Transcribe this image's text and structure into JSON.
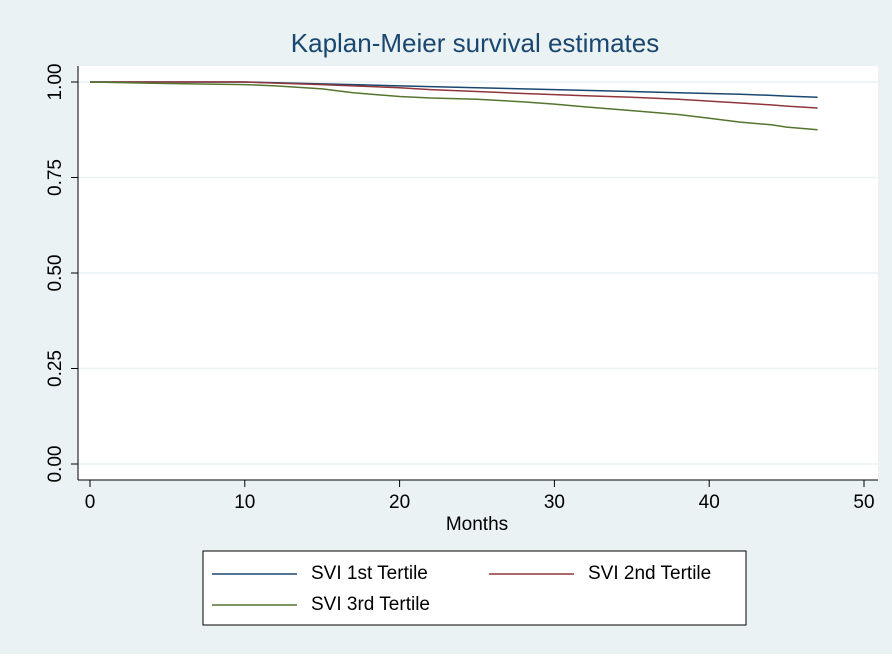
{
  "chart_data": {
    "type": "line",
    "title": "Kaplan-Meier survival estimates",
    "x_label": "Months",
    "x": [
      0,
      5,
      10,
      12,
      15,
      17,
      20,
      22,
      25,
      28,
      30,
      32,
      35,
      38,
      40,
      42,
      44,
      45,
      47
    ],
    "series": [
      {
        "name": "SVI 1st Tertile",
        "color": "#1a476f",
        "values": [
          1,
          1,
          1,
          0.998,
          0.995,
          0.993,
          0.99,
          0.988,
          0.985,
          0.982,
          0.98,
          0.978,
          0.975,
          0.972,
          0.97,
          0.968,
          0.965,
          0.963,
          0.96
        ]
      },
      {
        "name": "SVI 2nd Tertile",
        "color": "#90353b",
        "values": [
          1,
          1,
          1,
          0.997,
          0.993,
          0.99,
          0.985,
          0.98,
          0.975,
          0.97,
          0.967,
          0.964,
          0.96,
          0.955,
          0.95,
          0.945,
          0.94,
          0.937,
          0.932
        ]
      },
      {
        "name": "SVI 3rd Tertile",
        "color": "#55752f",
        "values": [
          1,
          0.996,
          0.993,
          0.99,
          0.982,
          0.972,
          0.962,
          0.958,
          0.955,
          0.948,
          0.942,
          0.935,
          0.925,
          0.915,
          0.905,
          0.895,
          0.888,
          0.882,
          0.875
        ]
      }
    ],
    "xlim": [
      0,
      50
    ],
    "xticks": [
      0,
      10,
      20,
      30,
      40,
      50
    ],
    "ylim": [
      0,
      1
    ],
    "yticks": [
      {
        "value": 0,
        "label": "0.00"
      },
      {
        "value": 0.25,
        "label": "0.25"
      },
      {
        "value": 0.5,
        "label": "0.50"
      },
      {
        "value": 0.75,
        "label": "0.75"
      },
      {
        "value": 1,
        "label": "1.00"
      }
    ],
    "grid": true
  }
}
